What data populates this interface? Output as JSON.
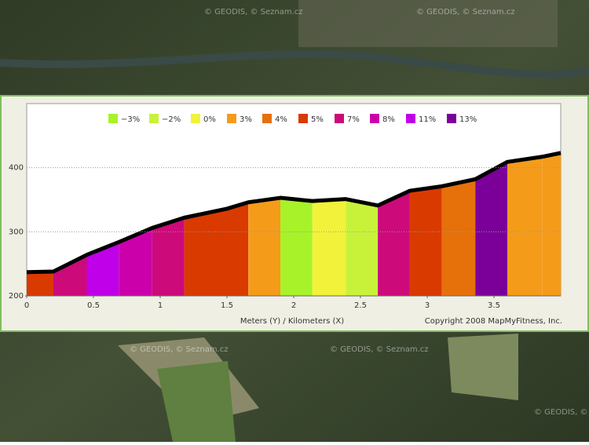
{
  "map": {
    "watermark": "© GEODIS, © Seznam.cz"
  },
  "chart_data": {
    "type": "area",
    "x_label": "Meters (Y) / Kilometers (X)",
    "copyright": "Copyright 2008 MapMyFitness, Inc.",
    "legend": [
      {
        "name": "−3%",
        "color": "#a8f22a"
      },
      {
        "name": "−2%",
        "color": "#c8f23a"
      },
      {
        "name": "0%",
        "color": "#f2f23a"
      },
      {
        "name": "3%",
        "color": "#f59b1a"
      },
      {
        "name": "4%",
        "color": "#e6700a"
      },
      {
        "name": "5%",
        "color": "#d93a00"
      },
      {
        "name": "7%",
        "color": "#cc0a7a"
      },
      {
        "name": "8%",
        "color": "#cc00aa"
      },
      {
        "name": "11%",
        "color": "#c000e8"
      },
      {
        "name": "13%",
        "color": "#7a0099"
      }
    ],
    "x": [
      0,
      0.2,
      0.45,
      0.69,
      0.94,
      1.18,
      1.5,
      1.66,
      1.9,
      2.14,
      2.39,
      2.63,
      2.87,
      3.11,
      3.36,
      3.6,
      3.86,
      4.0
    ],
    "values": [
      237,
      238,
      264,
      284,
      306,
      322,
      336,
      346,
      353,
      348,
      351,
      341,
      364,
      371,
      382,
      409,
      417,
      423
    ],
    "segment_colors": [
      "#d93a00",
      "#cc0a7a",
      "#c000e8",
      "#cc00aa",
      "#cc0a7a",
      "#d93a00",
      "#d93a00",
      "#f59b1a",
      "#a8f22a",
      "#f2f23a",
      "#c8f23a",
      "#cc0a7a",
      "#d93a00",
      "#e6700a",
      "#7a0099",
      "#f59b1a",
      "#f59b1a"
    ],
    "line_color": "#000000",
    "xlim": [
      0,
      4.0
    ],
    "ylim": [
      200,
      500
    ],
    "xticks": [
      0,
      0.5,
      1,
      1.5,
      2,
      2.5,
      3,
      3.5
    ],
    "yticks": [
      200,
      300,
      400
    ],
    "grid": true
  }
}
